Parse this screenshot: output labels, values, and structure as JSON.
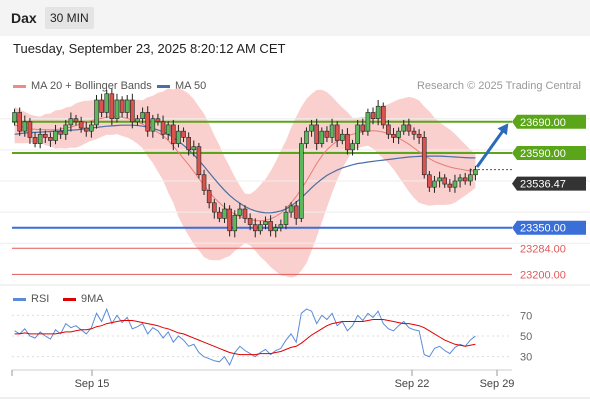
{
  "header": {
    "symbol": "Dax",
    "timeframe": "30 MIN"
  },
  "datetime": "Tuesday, September 23, 2025 8:20:12 AM CET",
  "copyright": "Research © 2025 Trading Central",
  "colors": {
    "up": "#5cb85c",
    "down": "#d9534f",
    "resistance": "#5aa51a",
    "support": "#3a6fd8",
    "target_red": "#e05a5a",
    "bands": "#f8c8c4",
    "ma20": "#e87d77",
    "ma50": "#4a6fa5",
    "rsi": "#5b8bd8",
    "rsi_ma": "#e00000",
    "arrow": "#2d6ab8",
    "last": "#333333"
  },
  "chart_data": [
    {
      "type": "candlestick",
      "title": "",
      "xlabel": "",
      "ylabel": "",
      "legend": [
        {
          "name": "MA 20 + Bollinger Bands",
          "color": "#f08a84"
        },
        {
          "name": "MA 50",
          "color": "#4a6fa5"
        }
      ],
      "ylim": [
        23150,
        23760
      ],
      "x_ticks": [
        "Sep 15",
        "Sep 22",
        "Sep 29"
      ],
      "levels": [
        {
          "label": "23690.00",
          "value": 23690,
          "kind": "resistance",
          "color": "#5aa51a"
        },
        {
          "label": "23590.00",
          "value": 23590,
          "kind": "resistance",
          "color": "#5aa51a"
        },
        {
          "label": "23536.47",
          "value": 23536.47,
          "kind": "last",
          "color": "#333333"
        },
        {
          "label": "23350.00",
          "value": 23350,
          "kind": "support",
          "color": "#3a6fd8"
        },
        {
          "label": "23284.00",
          "value": 23284,
          "kind": "target",
          "color": "#e05a5a"
        },
        {
          "label": "23200.00",
          "value": 23200,
          "kind": "target",
          "color": "#e05a5a"
        }
      ],
      "closes": [
        23720,
        23660,
        23690,
        23640,
        23620,
        23650,
        23640,
        23630,
        23660,
        23650,
        23680,
        23700,
        23690,
        23670,
        23660,
        23680,
        23760,
        23720,
        23780,
        23700,
        23760,
        23720,
        23760,
        23690,
        23700,
        23720,
        23660,
        23700,
        23690,
        23650,
        23680,
        23620,
        23660,
        23640,
        23600,
        23610,
        23520,
        23470,
        23430,
        23400,
        23380,
        23410,
        23340,
        23390,
        23410,
        23380,
        23360,
        23340,
        23360,
        23370,
        23340,
        23350,
        23360,
        23400,
        23420,
        23380,
        23620,
        23660,
        23680,
        23620,
        23660,
        23640,
        23680,
        23630,
        23650,
        23600,
        23620,
        23680,
        23660,
        23720,
        23700,
        23740,
        23680,
        23650,
        23640,
        23660,
        23680,
        23660,
        23650,
        23640,
        23520,
        23480,
        23500,
        23510,
        23490,
        23480,
        23500,
        23510,
        23500,
        23520,
        23536.47
      ],
      "ma20_band_mid": [
        23680,
        23675,
        23672,
        23668,
        23666,
        23665,
        23665,
        23664,
        23665,
        23667,
        23670,
        23673,
        23678,
        23684,
        23690,
        23694,
        23698,
        23701,
        23705,
        23706,
        23706,
        23704,
        23701,
        23696,
        23690,
        23682,
        23674,
        23666,
        23656,
        23645,
        23630,
        23612,
        23592,
        23572,
        23552,
        23530,
        23508,
        23486,
        23465,
        23446,
        23430,
        23415,
        23403,
        23394,
        23386,
        23380,
        23376,
        23373,
        23372,
        23374,
        23378,
        23386,
        23397,
        23412,
        23430,
        23450,
        23475,
        23500,
        23528,
        23556,
        23580,
        23600,
        23616,
        23628,
        23638,
        23645,
        23650,
        23654,
        23658,
        23660,
        23661,
        23660,
        23657,
        23652,
        23646,
        23638,
        23628,
        23618,
        23606,
        23594,
        23582,
        23572,
        23563,
        23556,
        23550,
        23545,
        23541,
        23538,
        23535,
        23533,
        23532
      ],
      "ma50": [
        23650,
        23652,
        23654,
        23655,
        23656,
        23657,
        23658,
        23659,
        23660,
        23661,
        23662,
        23663,
        23664,
        23666,
        23668,
        23670,
        23672,
        23674,
        23676,
        23677,
        23678,
        23679,
        23679,
        23679,
        23678,
        23676,
        23673,
        23669,
        23664,
        23658,
        23650,
        23640,
        23628,
        23615,
        23600,
        23584,
        23566,
        23547,
        23527,
        23507,
        23488,
        23470,
        23454,
        23440,
        23428,
        23418,
        23410,
        23404,
        23400,
        23398,
        23398,
        23400,
        23404,
        23410,
        23420,
        23432,
        23446,
        23462,
        23478,
        23493,
        23506,
        23518,
        23527,
        23535,
        23542,
        23547,
        23552,
        23556,
        23558,
        23561,
        23563,
        23565,
        23567,
        23569,
        23571,
        23573,
        23575,
        23577,
        23578,
        23579,
        23580,
        23580,
        23580,
        23580,
        23579,
        23578,
        23577,
        23576,
        23575,
        23574,
        23574
      ]
    },
    {
      "type": "line",
      "title": "",
      "legend": [
        {
          "name": "RSI",
          "color": "#5b8bd8"
        },
        {
          "name": "9MA",
          "color": "#e00000"
        }
      ],
      "ylim": [
        20,
        80
      ],
      "y_ticks": [
        70,
        50,
        30
      ],
      "series": [
        {
          "name": "RSI",
          "values": [
            55,
            52,
            57,
            50,
            48,
            54,
            50,
            47,
            56,
            52,
            62,
            58,
            60,
            56,
            52,
            58,
            72,
            64,
            76,
            62,
            70,
            63,
            68,
            57,
            59,
            62,
            52,
            58,
            55,
            48,
            54,
            44,
            50,
            46,
            40,
            42,
            34,
            30,
            28,
            26,
            25,
            30,
            22,
            34,
            40,
            36,
            33,
            30,
            34,
            37,
            32,
            36,
            38,
            46,
            52,
            44,
            72,
            76,
            74,
            62,
            70,
            66,
            72,
            60,
            64,
            55,
            60,
            70,
            65,
            72,
            68,
            74,
            62,
            57,
            55,
            60,
            64,
            58,
            56,
            55,
            32,
            30,
            38,
            40,
            36,
            33,
            39,
            42,
            40,
            46,
            50
          ]
        },
        {
          "name": "9MA",
          "values": [
            52,
            52,
            53,
            52,
            52,
            52,
            52,
            52,
            52,
            53,
            54,
            54,
            55,
            56,
            56,
            57,
            59,
            60,
            62,
            63,
            64,
            65,
            65,
            65,
            64,
            63,
            62,
            61,
            60,
            58,
            57,
            55,
            53,
            52,
            50,
            48,
            46,
            44,
            42,
            40,
            38,
            36,
            34,
            33,
            32,
            32,
            32,
            32,
            33,
            33,
            33,
            34,
            35,
            37,
            39,
            40,
            43,
            47,
            51,
            54,
            57,
            60,
            62,
            63,
            64,
            64,
            64,
            64,
            64,
            65,
            66,
            66,
            66,
            65,
            64,
            63,
            62,
            62,
            61,
            60,
            58,
            55,
            52,
            49,
            46,
            44,
            42,
            41,
            40,
            41,
            42
          ]
        }
      ]
    }
  ]
}
